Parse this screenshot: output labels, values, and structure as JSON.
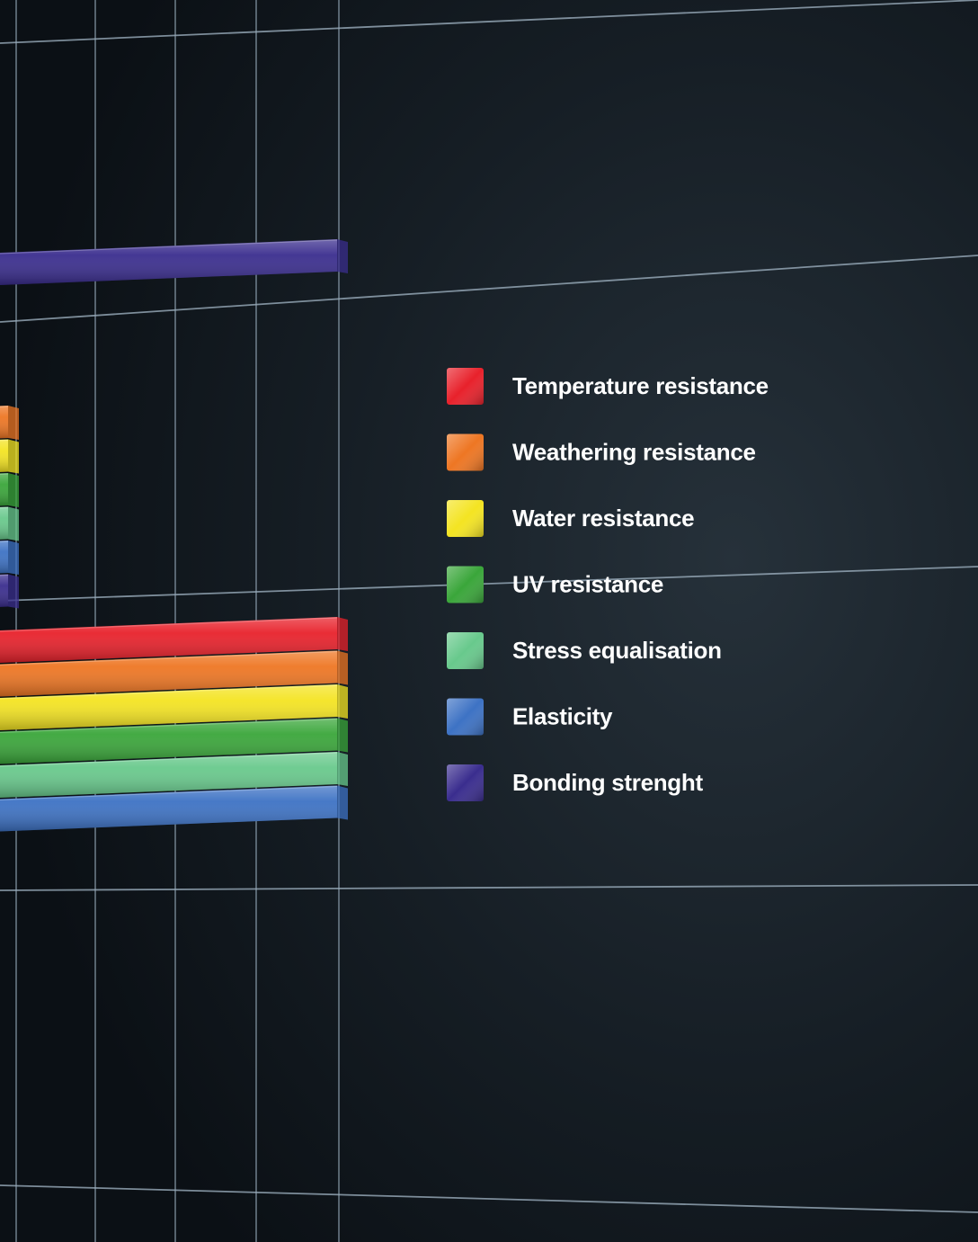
{
  "chart_data": {
    "type": "bar",
    "orientation": "horizontal",
    "grid": true,
    "legend_placement": "right",
    "categories": [
      "",
      "",
      "",
      ""
    ],
    "xlim": [
      0,
      5
    ],
    "series": [
      {
        "name": "Temperature resistance",
        "color": "#e8212b",
        "values": [
          null,
          null,
          5,
          null
        ]
      },
      {
        "name": "Weathering resistance",
        "color": "#ee7623",
        "values": [
          null,
          3,
          5,
          null
        ]
      },
      {
        "name": "Water resistance",
        "color": "#f4e422",
        "values": [
          null,
          3,
          5,
          null
        ]
      },
      {
        "name": "UV resistance",
        "color": "#3aa63a",
        "values": [
          null,
          3,
          5,
          null
        ]
      },
      {
        "name": "Stress equalisation",
        "color": "#68c98c",
        "values": [
          null,
          3,
          5,
          null
        ]
      },
      {
        "name": "Elasticity",
        "color": "#3d72c4",
        "values": [
          null,
          3,
          5,
          null
        ]
      },
      {
        "name": "Bonding strenght",
        "color": "#3a2d8e",
        "values": [
          5,
          3,
          null,
          0.2
        ]
      }
    ]
  }
}
